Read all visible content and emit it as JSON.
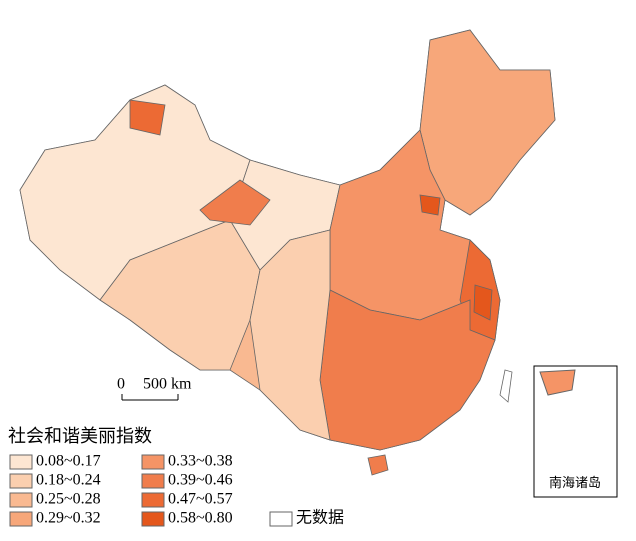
{
  "legend": {
    "title": "社会和谐美丽指数",
    "items": [
      {
        "label": "0.08~0.17",
        "color": "#fde6d2"
      },
      {
        "label": "0.18~0.24",
        "color": "#fbcfaf"
      },
      {
        "label": "0.25~0.28",
        "color": "#f9b991"
      },
      {
        "label": "0.29~0.32",
        "color": "#f7a77a"
      },
      {
        "label": "0.33~0.38",
        "color": "#f59466"
      },
      {
        "label": "0.39~0.46",
        "color": "#f07d4c"
      },
      {
        "label": "0.47~0.57",
        "color": "#ec6a34"
      },
      {
        "label": "0.58~0.80",
        "color": "#e4571c"
      }
    ],
    "no_data": {
      "label": "无数据",
      "color": "#ffffff"
    }
  },
  "scale_bar": {
    "start": "0",
    "end": "500 km"
  },
  "inset": {
    "label": "南海诸岛"
  }
}
